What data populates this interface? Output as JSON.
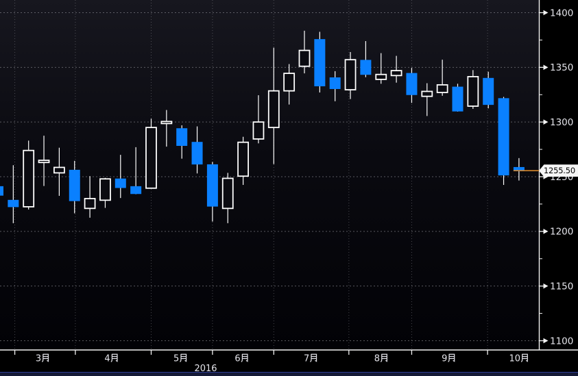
{
  "chart": {
    "last_price": 1255.5,
    "last_price_label": "1255.50",
    "year_label": "2016",
    "colors": {
      "background_top": "#17171f",
      "background_mid": "#0a0a10",
      "background_bottom": "#020206",
      "up_candle": "#ffffff",
      "up_candle_fill": "#0b0b11",
      "down_candle": "#0a80ff",
      "wick": "#ffffff",
      "grid": "#8b8b92",
      "axis": "#f2f2f2",
      "tick_label": "#e4e4ea",
      "last_price_line": "#d4862c",
      "price_flag_bg": "#f5f5f5",
      "price_flag_text": "#000000",
      "bottom_strip": "#151a38",
      "bottom_strip_border": "#2e3e96"
    }
  },
  "chart_data": {
    "type": "candlestick",
    "timeframe": "weekly",
    "title": "",
    "xlabel": "2016",
    "ylabel": "",
    "ylim": [
      1100,
      1400
    ],
    "y_ticks": [
      1100,
      1150,
      1200,
      1250,
      1300,
      1350,
      1400
    ],
    "y_minor_tick_step": 25,
    "grid": "dashed",
    "legend": "none",
    "last_price": 1255.5,
    "months": [
      {
        "label": "3月",
        "start": 1.1,
        "center": 2.9
      },
      {
        "label": "4月",
        "start": 5.05,
        "center": 7.4
      },
      {
        "label": "5月",
        "start": 10.0,
        "center": 11.9
      },
      {
        "label": "6月",
        "start": 14.0,
        "center": 15.9
      },
      {
        "label": "7月",
        "start": 18.0,
        "center": 20.4
      },
      {
        "label": "8月",
        "start": 22.9,
        "center": 25.0
      },
      {
        "label": "9月",
        "start": 27.0,
        "center": 29.4
      },
      {
        "label": "10月",
        "start": 31.95,
        "center": 34.0
      }
    ],
    "candles": [
      {
        "o": 1241.0,
        "h": 1242.5,
        "l": 1232.0,
        "c": 1233.0
      },
      {
        "o": 1228.5,
        "h": 1260.5,
        "l": 1207.5,
        "c": 1222.5
      },
      {
        "o": 1222.5,
        "h": 1283.0,
        "l": 1220.0,
        "c": 1274.0
      },
      {
        "o": 1263.0,
        "h": 1287.5,
        "l": 1241.5,
        "c": 1265.0
      },
      {
        "o": 1253.5,
        "h": 1276.5,
        "l": 1232.5,
        "c": 1258.5
      },
      {
        "o": 1256.0,
        "h": 1264.5,
        "l": 1216.5,
        "c": 1228.0
      },
      {
        "o": 1221.0,
        "h": 1250.5,
        "l": 1212.5,
        "c": 1230.0
      },
      {
        "o": 1228.5,
        "h": 1249.0,
        "l": 1221.5,
        "c": 1248.0
      },
      {
        "o": 1248.0,
        "h": 1270.0,
        "l": 1230.5,
        "c": 1240.0
      },
      {
        "o": 1241.0,
        "h": 1277.0,
        "l": 1234.0,
        "c": 1234.5
      },
      {
        "o": 1239.5,
        "h": 1303.0,
        "l": 1239.0,
        "c": 1295.0
      },
      {
        "o": 1299.5,
        "h": 1311.0,
        "l": 1277.5,
        "c": 1300.5
      },
      {
        "o": 1294.0,
        "h": 1297.0,
        "l": 1266.5,
        "c": 1278.5
      },
      {
        "o": 1281.5,
        "h": 1296.0,
        "l": 1253.0,
        "c": 1261.5
      },
      {
        "o": 1261.0,
        "h": 1263.5,
        "l": 1209.0,
        "c": 1223.0
      },
      {
        "o": 1221.0,
        "h": 1253.5,
        "l": 1207.5,
        "c": 1248.5
      },
      {
        "o": 1250.5,
        "h": 1286.5,
        "l": 1242.5,
        "c": 1281.5
      },
      {
        "o": 1284.5,
        "h": 1324.5,
        "l": 1280.5,
        "c": 1300.0
      },
      {
        "o": 1295.0,
        "h": 1368.0,
        "l": 1261.5,
        "c": 1328.5
      },
      {
        "o": 1328.5,
        "h": 1353.0,
        "l": 1316.0,
        "c": 1344.5
      },
      {
        "o": 1351.0,
        "h": 1383.5,
        "l": 1344.5,
        "c": 1365.5
      },
      {
        "o": 1375.5,
        "h": 1382.5,
        "l": 1327.0,
        "c": 1333.0
      },
      {
        "o": 1340.5,
        "h": 1346.5,
        "l": 1319.0,
        "c": 1330.5
      },
      {
        "o": 1329.5,
        "h": 1364.0,
        "l": 1321.0,
        "c": 1357.0
      },
      {
        "o": 1356.5,
        "h": 1374.0,
        "l": 1341.0,
        "c": 1343.5
      },
      {
        "o": 1339.0,
        "h": 1363.0,
        "l": 1335.0,
        "c": 1343.5
      },
      {
        "o": 1342.5,
        "h": 1360.5,
        "l": 1336.0,
        "c": 1347.0
      },
      {
        "o": 1344.5,
        "h": 1349.5,
        "l": 1317.5,
        "c": 1325.0
      },
      {
        "o": 1323.5,
        "h": 1335.5,
        "l": 1305.5,
        "c": 1328.0
      },
      {
        "o": 1327.0,
        "h": 1357.0,
        "l": 1324.0,
        "c": 1334.0
      },
      {
        "o": 1332.0,
        "h": 1335.0,
        "l": 1309.5,
        "c": 1310.0
      },
      {
        "o": 1314.5,
        "h": 1347.5,
        "l": 1312.0,
        "c": 1341.5
      },
      {
        "o": 1340.0,
        "h": 1346.0,
        "l": 1312.5,
        "c": 1316.0
      },
      {
        "o": 1321.5,
        "h": 1323.0,
        "l": 1242.5,
        "c": 1251.5
      },
      {
        "o": 1258.5,
        "h": 1267.0,
        "l": 1246.5,
        "c": 1255.5
      }
    ]
  }
}
